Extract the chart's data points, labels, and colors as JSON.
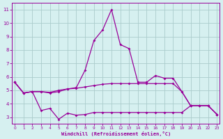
{
  "xlabel": "Windchill (Refroidissement éolien,°C)",
  "background_color": "#d6f0f0",
  "grid_color": "#aacccc",
  "line_color": "#990099",
  "xlim": [
    -0.3,
    23.3
  ],
  "ylim": [
    2.5,
    11.5
  ],
  "xticks": [
    0,
    1,
    2,
    3,
    4,
    5,
    6,
    7,
    8,
    9,
    10,
    11,
    12,
    13,
    14,
    15,
    16,
    17,
    18,
    19,
    20,
    21,
    22,
    23
  ],
  "yticks": [
    3,
    4,
    5,
    6,
    7,
    8,
    9,
    10,
    11
  ],
  "line1_x": [
    0,
    1,
    2,
    3,
    4,
    5,
    6,
    7,
    8,
    9,
    10,
    11,
    12,
    13,
    14,
    15,
    16,
    17,
    18,
    19,
    20,
    21,
    22,
    23
  ],
  "line1_y": [
    5.6,
    4.8,
    4.9,
    4.9,
    4.8,
    4.9,
    5.1,
    5.2,
    6.5,
    8.7,
    9.5,
    11.0,
    8.4,
    8.1,
    5.6,
    5.6,
    6.1,
    5.9,
    5.9,
    4.9,
    3.85,
    3.85,
    3.85,
    3.2
  ],
  "line2_x": [
    0,
    1,
    2,
    3,
    4,
    5,
    6,
    7,
    8,
    9,
    10,
    11,
    12,
    13,
    14,
    15,
    16,
    17,
    18,
    19,
    20,
    21,
    22,
    23
  ],
  "line2_y": [
    5.6,
    4.8,
    4.9,
    4.9,
    4.85,
    5.0,
    5.1,
    5.15,
    5.25,
    5.35,
    5.45,
    5.5,
    5.5,
    5.5,
    5.5,
    5.5,
    5.5,
    5.5,
    5.5,
    4.9,
    3.85,
    3.85,
    3.85,
    3.2
  ],
  "line3_x": [
    0,
    1,
    2,
    3,
    4,
    5,
    6,
    7,
    8,
    9,
    10,
    11,
    12,
    13,
    14,
    15,
    16,
    17,
    18,
    19,
    20,
    21,
    22,
    23
  ],
  "line3_y": [
    5.6,
    4.8,
    4.9,
    3.5,
    3.65,
    2.85,
    3.3,
    3.15,
    3.2,
    3.35,
    3.35,
    3.35,
    3.35,
    3.35,
    3.35,
    3.35,
    3.35,
    3.35,
    3.35,
    3.35,
    3.85,
    3.85,
    3.85,
    3.2
  ]
}
